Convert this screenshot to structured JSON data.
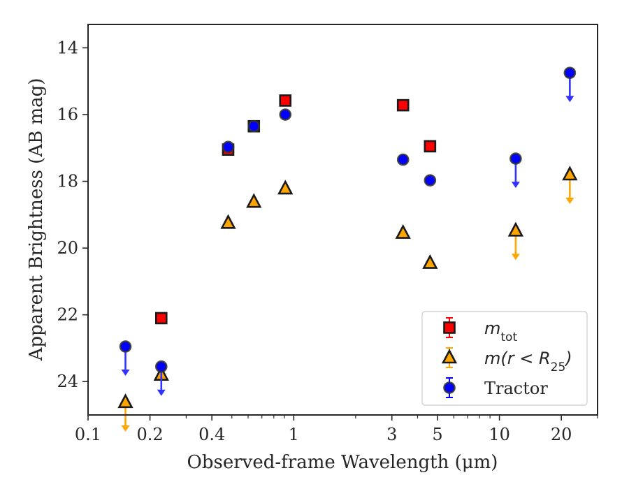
{
  "chart_data": {
    "type": "scatter",
    "xscale": "log",
    "xlabel": "Observed-frame Wavelength (μm)",
    "ylabel": "Apparent Brightness (AB mag)",
    "xlim": [
      0.1,
      30
    ],
    "ylim": [
      25,
      13.3
    ],
    "y_inverted": true,
    "grid": false,
    "legend_position": "lower-right",
    "x_ticks": [
      {
        "value": 0.1,
        "label": "0.1"
      },
      {
        "value": 0.2,
        "label": "0.2"
      },
      {
        "value": 0.4,
        "label": "0.4"
      },
      {
        "value": 1,
        "label": "1"
      },
      {
        "value": 3,
        "label": "3"
      },
      {
        "value": 5,
        "label": "5"
      },
      {
        "value": 10,
        "label": "10"
      },
      {
        "value": 20,
        "label": "20"
      }
    ],
    "x_minor_ticks": [
      0.3,
      0.5,
      0.6,
      0.7,
      0.8,
      0.9,
      2,
      4,
      6,
      7,
      8,
      9,
      30
    ],
    "y_ticks": [
      {
        "value": 14,
        "label": "14"
      },
      {
        "value": 16,
        "label": "16"
      },
      {
        "value": 18,
        "label": "18"
      },
      {
        "value": 20,
        "label": "20"
      },
      {
        "value": 22,
        "label": "22"
      },
      {
        "value": 24,
        "label": "24"
      }
    ],
    "legend": [
      {
        "series": "m_tot",
        "label_main": "m",
        "label_sub": "tot",
        "label_tail": ""
      },
      {
        "series": "m_r25",
        "label_main": "m(r < R",
        "label_sub": "25",
        "label_tail": ")"
      },
      {
        "series": "tractor",
        "label_main": "Tractor",
        "label_sub": "",
        "label_tail": ""
      }
    ],
    "series": [
      {
        "name": "m_tot",
        "marker": "square",
        "color": "#ff0000",
        "edge_color": "#1a1a1a",
        "points": [
          {
            "x": 0.227,
            "y": 22.1
          },
          {
            "x": 0.48,
            "y": 17.05
          },
          {
            "x": 0.64,
            "y": 16.35
          },
          {
            "x": 0.91,
            "y": 15.58
          },
          {
            "x": 3.4,
            "y": 15.72
          },
          {
            "x": 4.6,
            "y": 16.95
          }
        ]
      },
      {
        "name": "m_r25",
        "marker": "triangle",
        "color": "#ffa500",
        "edge_color": "#1a1a1a",
        "points": [
          {
            "x": 0.152,
            "y": 24.62,
            "upper_limit": true
          },
          {
            "x": 0.227,
            "y": 23.8
          },
          {
            "x": 0.48,
            "y": 19.25
          },
          {
            "x": 0.64,
            "y": 18.62
          },
          {
            "x": 0.91,
            "y": 18.22
          },
          {
            "x": 3.4,
            "y": 19.55
          },
          {
            "x": 4.6,
            "y": 20.45
          },
          {
            "x": 12.0,
            "y": 19.48,
            "upper_limit": true
          },
          {
            "x": 22.0,
            "y": 17.8,
            "upper_limit": true
          }
        ]
      },
      {
        "name": "tractor",
        "marker": "circle",
        "color": "#0000ff",
        "edge_color": "#333333",
        "points": [
          {
            "x": 0.152,
            "y": 22.95,
            "upper_limit": true
          },
          {
            "x": 0.227,
            "y": 23.55,
            "upper_limit": true
          },
          {
            "x": 0.48,
            "y": 16.97
          },
          {
            "x": 0.64,
            "y": 16.35
          },
          {
            "x": 0.91,
            "y": 16.0
          },
          {
            "x": 3.4,
            "y": 17.35
          },
          {
            "x": 4.6,
            "y": 17.97
          },
          {
            "x": 12.0,
            "y": 17.32,
            "upper_limit": true
          },
          {
            "x": 22.0,
            "y": 14.75,
            "upper_limit": true
          }
        ]
      }
    ]
  }
}
